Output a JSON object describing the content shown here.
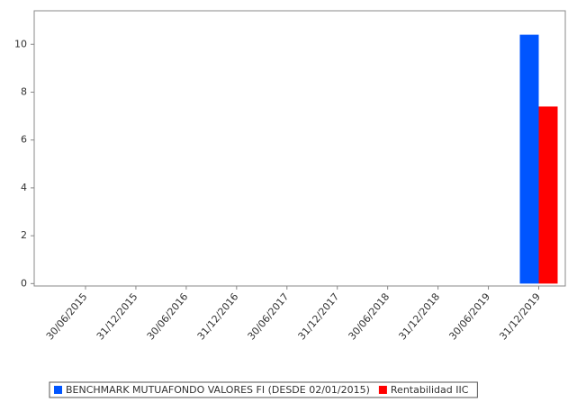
{
  "chart_data": {
    "type": "bar",
    "categories": [
      "30/06/2015",
      "31/12/2015",
      "30/06/2016",
      "31/12/2016",
      "30/06/2017",
      "31/12/2017",
      "30/06/2018",
      "31/12/2018",
      "30/06/2019",
      "31/12/2019"
    ],
    "series": [
      {
        "name": "BENCHMARK MUTUAFONDO VALORES FI (DESDE 02/01/2015)",
        "color": "#0055ff",
        "values": [
          0,
          0,
          0,
          0,
          0,
          0,
          0,
          0,
          0,
          10.4
        ]
      },
      {
        "name": "Rentabilidad IIC",
        "color": "#ff0000",
        "values": [
          0,
          0,
          0,
          0,
          0,
          0,
          0,
          0,
          0,
          7.4
        ]
      }
    ],
    "ylim": [
      -0.1,
      11.4
    ],
    "yticks": [
      0,
      2,
      4,
      6,
      8,
      10
    ],
    "grid": false
  }
}
